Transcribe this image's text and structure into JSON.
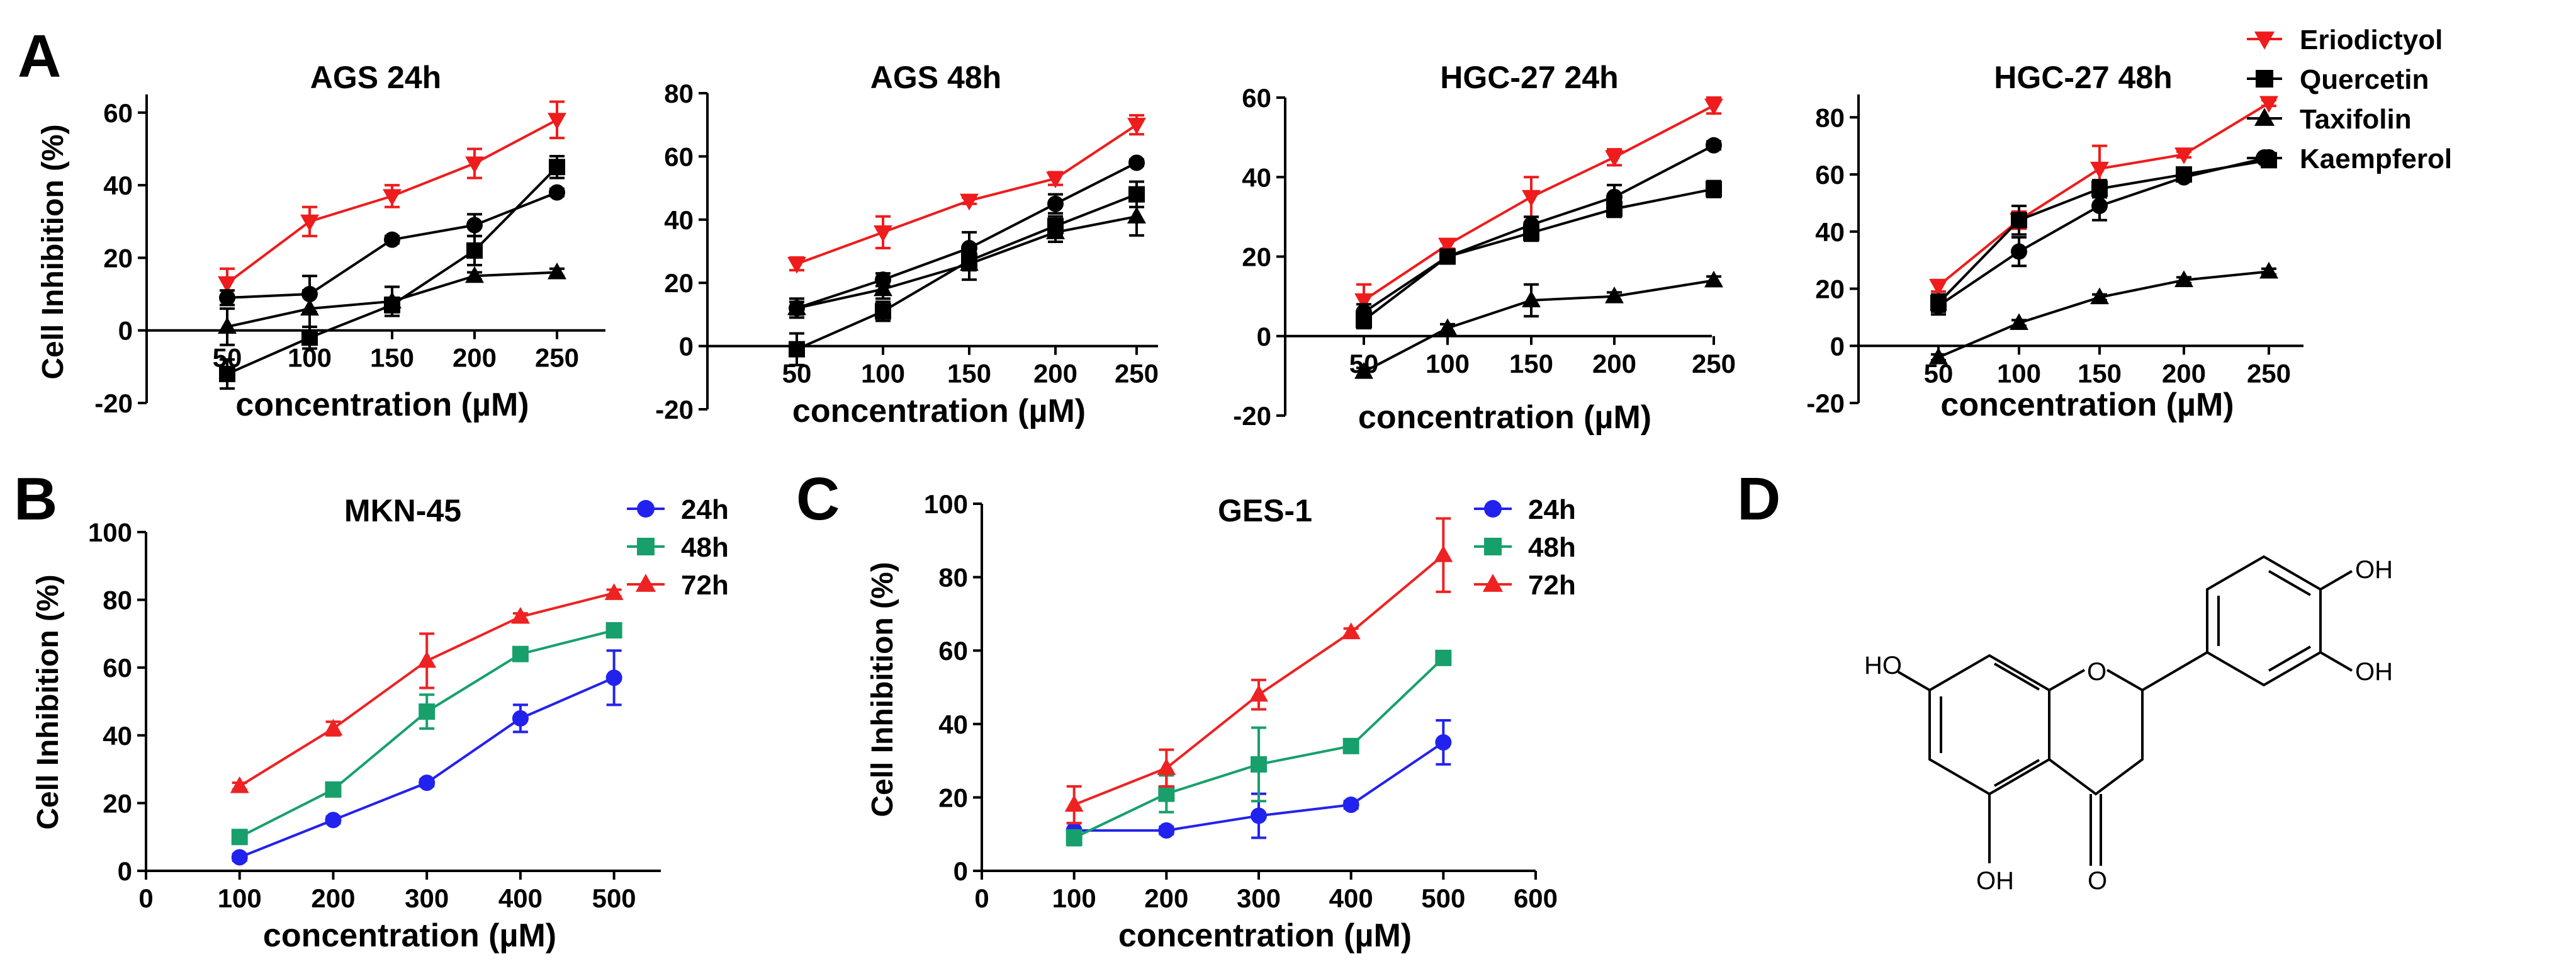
{
  "panels": {
    "A": "A",
    "B": "B",
    "C": "C",
    "D": "D"
  },
  "legend_A": [
    {
      "name": "Eriodictyol",
      "marker": "triangle-down",
      "color": "#ee1c1c"
    },
    {
      "name": "Quercetin",
      "marker": "square",
      "color": "#000000"
    },
    {
      "name": "Taxifolin",
      "marker": "triangle-up",
      "color": "#000000"
    },
    {
      "name": "Kaempferol",
      "marker": "circle",
      "color": "#000000"
    }
  ],
  "legend_BC": [
    {
      "name": "24h",
      "marker": "circle",
      "color": "#2222ee"
    },
    {
      "name": "48h",
      "marker": "square",
      "color": "#17a06b"
    },
    {
      "name": "72h",
      "marker": "triangle-up",
      "color": "#ee2222"
    }
  ],
  "structure": {
    "atoms": {
      "oh1": "OH",
      "oh2": "OH",
      "ho": "HO",
      "o_ring": "O",
      "oh_bottom": "OH",
      "o_keto": "O"
    }
  },
  "chart_data": [
    {
      "id": "ags24",
      "panel": "A",
      "type": "line",
      "title": "AGS 24h",
      "xlabel": "concentration (µM)",
      "ylabel": "Cell Inhibition (%)",
      "x": [
        50,
        100,
        150,
        200,
        250
      ],
      "xticks": [
        50,
        100,
        150,
        200,
        250
      ],
      "ylim": [
        -20,
        65
      ],
      "yticks": [
        -20,
        0,
        20,
        40,
        60
      ],
      "series": [
        {
          "name": "Eriodictyol",
          "values": [
            13,
            30,
            37,
            46,
            58
          ],
          "err": [
            4,
            4,
            3,
            4,
            5
          ]
        },
        {
          "name": "Quercetin",
          "values": [
            -12,
            -2,
            7,
            22,
            45
          ],
          "err": [
            4,
            3,
            2,
            4,
            3
          ]
        },
        {
          "name": "Taxifolin",
          "values": [
            1,
            6,
            8,
            15,
            16
          ],
          "err": [
            5,
            5,
            4,
            1,
            1
          ]
        },
        {
          "name": "Kaempferol",
          "values": [
            9,
            10,
            25,
            29,
            38
          ],
          "err": [
            2,
            5,
            1,
            3,
            1
          ]
        }
      ]
    },
    {
      "id": "ags48",
      "panel": "A",
      "type": "line",
      "title": "AGS 48h",
      "xlabel": "concentration (µM)",
      "ylabel": "",
      "x": [
        50,
        100,
        150,
        200,
        250
      ],
      "xticks": [
        50,
        100,
        150,
        200,
        250
      ],
      "ylim": [
        -20,
        80
      ],
      "yticks": [
        -20,
        0,
        20,
        40,
        60,
        80
      ],
      "series": [
        {
          "name": "Eriodictyol",
          "values": [
            26,
            36,
            46,
            53,
            70
          ],
          "err": [
            2,
            5,
            1,
            2,
            3
          ]
        },
        {
          "name": "Quercetin",
          "values": [
            -1,
            11,
            27,
            38,
            48
          ],
          "err": [
            5,
            3,
            3,
            3,
            4
          ]
        },
        {
          "name": "Taxifolin",
          "values": [
            12,
            18,
            26,
            36,
            41
          ],
          "err": [
            3,
            3,
            5,
            3,
            6
          ]
        },
        {
          "name": "Kaempferol",
          "values": [
            12,
            21,
            31,
            45,
            58
          ],
          "err": [
            2,
            2,
            5,
            3,
            1
          ]
        }
      ]
    },
    {
      "id": "hgc24",
      "panel": "A",
      "type": "line",
      "title": "HGC-27  24h",
      "xlabel": "concentration (µM)",
      "ylabel": "",
      "x": [
        50,
        100,
        150,
        200,
        250
      ],
      "xticks": [
        50,
        100,
        150,
        200,
        250
      ],
      "ylim": [
        -20,
        60
      ],
      "yticks": [
        -20,
        0,
        20,
        40,
        60
      ],
      "series": [
        {
          "name": "Eriodictyol",
          "values": [
            9,
            23,
            35,
            45,
            58
          ],
          "err": [
            4,
            1,
            5,
            2,
            2
          ]
        },
        {
          "name": "Quercetin",
          "values": [
            4,
            20,
            26,
            32,
            37
          ],
          "err": [
            2,
            1,
            2,
            2,
            2
          ]
        },
        {
          "name": "Taxifolin",
          "values": [
            -9,
            2,
            9,
            10,
            14
          ],
          "err": [
            1,
            1,
            4,
            1,
            1
          ]
        },
        {
          "name": "Kaempferol",
          "values": [
            6,
            20,
            28,
            35,
            48
          ],
          "err": [
            2,
            1,
            2,
            3,
            1
          ]
        }
      ]
    },
    {
      "id": "hgc48",
      "panel": "A",
      "type": "line",
      "title": "HGC-27  48h",
      "xlabel": "concentration (µM)",
      "ylabel": "",
      "x": [
        50,
        100,
        150,
        200,
        250
      ],
      "xticks": [
        50,
        100,
        150,
        200,
        250
      ],
      "ylim": [
        -20,
        88
      ],
      "yticks": [
        -20,
        0,
        20,
        40,
        60,
        80
      ],
      "series": [
        {
          "name": "Eriodictyol",
          "values": [
            21,
            44,
            62,
            67,
            85
          ],
          "err": [
            2,
            3,
            8,
            1,
            1
          ]
        },
        {
          "name": "Quercetin",
          "values": [
            15,
            44,
            55,
            60,
            65
          ],
          "err": [
            3,
            5,
            3,
            2,
            2
          ]
        },
        {
          "name": "Taxifolin",
          "values": [
            -4,
            8,
            17,
            23,
            26
          ],
          "err": [
            1,
            1,
            1,
            1,
            1
          ]
        },
        {
          "name": "Kaempferol",
          "values": [
            14,
            33,
            49,
            59,
            66
          ],
          "err": [
            3,
            5,
            5,
            1,
            1
          ]
        }
      ]
    },
    {
      "id": "mkn45",
      "panel": "B",
      "type": "line",
      "title": "MKN-45",
      "xlabel": "concentration (µM)",
      "ylabel": "Cell Inhibition (%)",
      "x": [
        100,
        200,
        300,
        400,
        500
      ],
      "xticks": [
        0,
        100,
        200,
        300,
        400,
        500
      ],
      "xlim": [
        0,
        550
      ],
      "ylim": [
        0,
        100
      ],
      "yticks": [
        0,
        20,
        40,
        60,
        80,
        100
      ],
      "series": [
        {
          "name": "24h",
          "values": [
            4,
            15,
            26,
            45,
            57
          ],
          "err": [
            1,
            1,
            1,
            4,
            8
          ]
        },
        {
          "name": "48h",
          "values": [
            10,
            24,
            47,
            64,
            71
          ],
          "err": [
            1,
            1,
            5,
            1,
            1
          ]
        },
        {
          "name": "72h",
          "values": [
            25,
            42,
            62,
            75,
            82
          ],
          "err": [
            1,
            2,
            8,
            1,
            1
          ]
        }
      ]
    },
    {
      "id": "ges1",
      "panel": "C",
      "type": "line",
      "title": "GES-1",
      "xlabel": "concentration (µM)",
      "ylabel": "Cell Inhibition (%)",
      "x": [
        100,
        200,
        300,
        400,
        500
      ],
      "xticks": [
        0,
        100,
        200,
        300,
        400,
        500,
        600
      ],
      "xlim": [
        0,
        600
      ],
      "ylim": [
        0,
        100
      ],
      "yticks": [
        0,
        20,
        40,
        60,
        80,
        100
      ],
      "series": [
        {
          "name": "24h",
          "values": [
            11,
            11,
            15,
            18,
            35
          ],
          "err": [
            2,
            1,
            6,
            1,
            6
          ]
        },
        {
          "name": "48h",
          "values": [
            9,
            21,
            29,
            34,
            58
          ],
          "err": [
            2,
            5,
            10,
            1,
            1
          ]
        },
        {
          "name": "72h",
          "values": [
            18,
            28,
            48,
            65,
            86
          ],
          "err": [
            5,
            5,
            4,
            1,
            10
          ]
        }
      ]
    }
  ]
}
